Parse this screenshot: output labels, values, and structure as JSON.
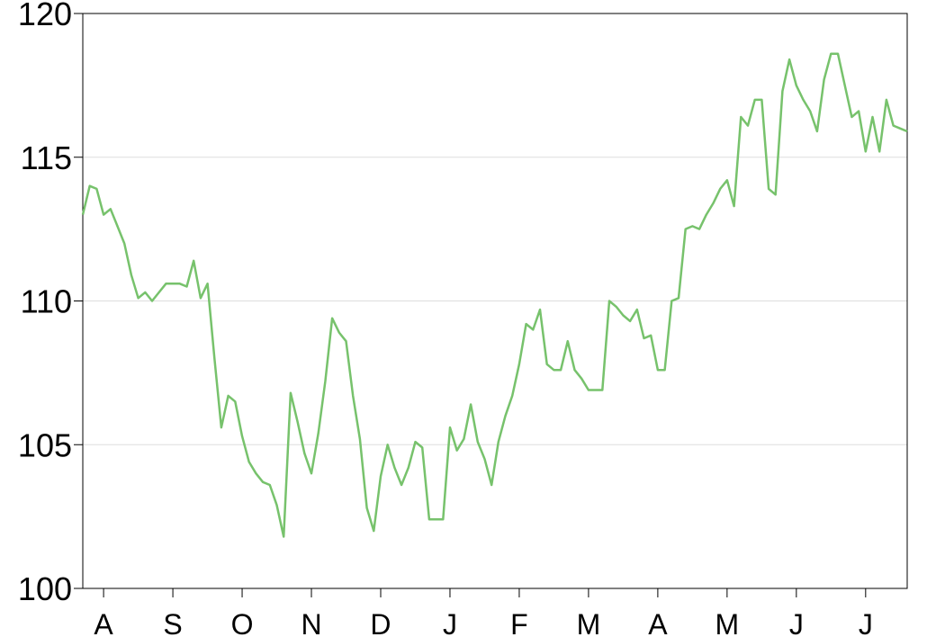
{
  "chart_data": {
    "type": "line",
    "categories": [
      null,
      null,
      null,
      "A",
      null,
      null,
      null,
      null,
      null,
      null,
      null,
      null,
      null,
      "S",
      null,
      null,
      null,
      null,
      null,
      null,
      null,
      null,
      null,
      "O",
      null,
      null,
      null,
      null,
      null,
      null,
      null,
      null,
      null,
      "N",
      null,
      null,
      null,
      null,
      null,
      null,
      null,
      null,
      null,
      "D",
      null,
      null,
      null,
      null,
      null,
      null,
      null,
      null,
      null,
      "J",
      null,
      null,
      null,
      null,
      null,
      null,
      null,
      null,
      null,
      "F",
      null,
      null,
      null,
      null,
      null,
      null,
      null,
      null,
      null,
      "M",
      null,
      null,
      null,
      null,
      null,
      null,
      null,
      null,
      null,
      "A",
      null,
      null,
      null,
      null,
      null,
      null,
      null,
      null,
      null,
      "M",
      null,
      null,
      null,
      null,
      null,
      null,
      null,
      null,
      null,
      "J",
      null,
      null,
      null,
      null,
      null,
      null,
      null,
      null,
      null,
      "J",
      null,
      null,
      null,
      null,
      null,
      null
    ],
    "series": [
      {
        "color": "#77c26c",
        "values": [
          113.0,
          114.0,
          113.9,
          113.0,
          113.2,
          112.6,
          112.0,
          110.9,
          110.1,
          110.3,
          110.0,
          110.3,
          110.6,
          110.6,
          110.6,
          110.5,
          111.4,
          110.1,
          110.6,
          108.0,
          105.6,
          106.7,
          106.5,
          105.3,
          104.4,
          104.0,
          103.7,
          103.6,
          102.9,
          101.8,
          106.8,
          105.8,
          104.7,
          104.0,
          105.4,
          107.2,
          109.4,
          108.9,
          108.6,
          106.7,
          105.2,
          102.8,
          102.0,
          103.9,
          105.0,
          104.2,
          103.6,
          104.2,
          105.1,
          104.9,
          102.4,
          102.4,
          102.4,
          105.6,
          104.8,
          105.2,
          106.4,
          105.1,
          104.5,
          103.6,
          105.1,
          106.0,
          106.7,
          107.8,
          109.2,
          109.0,
          109.7,
          107.8,
          107.6,
          107.6,
          108.6,
          107.6,
          107.3,
          106.9,
          106.9,
          106.9,
          110.0,
          109.8,
          109.5,
          109.3,
          109.7,
          108.7,
          108.8,
          107.6,
          107.6,
          110.0,
          110.1,
          112.5,
          112.6,
          112.5,
          113.0,
          113.4,
          113.9,
          114.2,
          113.3,
          116.4,
          116.1,
          117.0,
          117.0,
          113.9,
          113.7,
          117.3,
          118.4,
          117.5,
          117.0,
          116.6,
          115.9,
          117.7,
          118.6,
          118.6,
          117.5,
          116.4,
          116.6,
          115.2,
          116.4,
          115.2,
          117.0,
          116.1,
          116.0,
          115.9
        ]
      }
    ],
    "ylim": [
      100,
      120
    ],
    "yticks": [
      100,
      105,
      110,
      115,
      120
    ],
    "grid": true
  }
}
